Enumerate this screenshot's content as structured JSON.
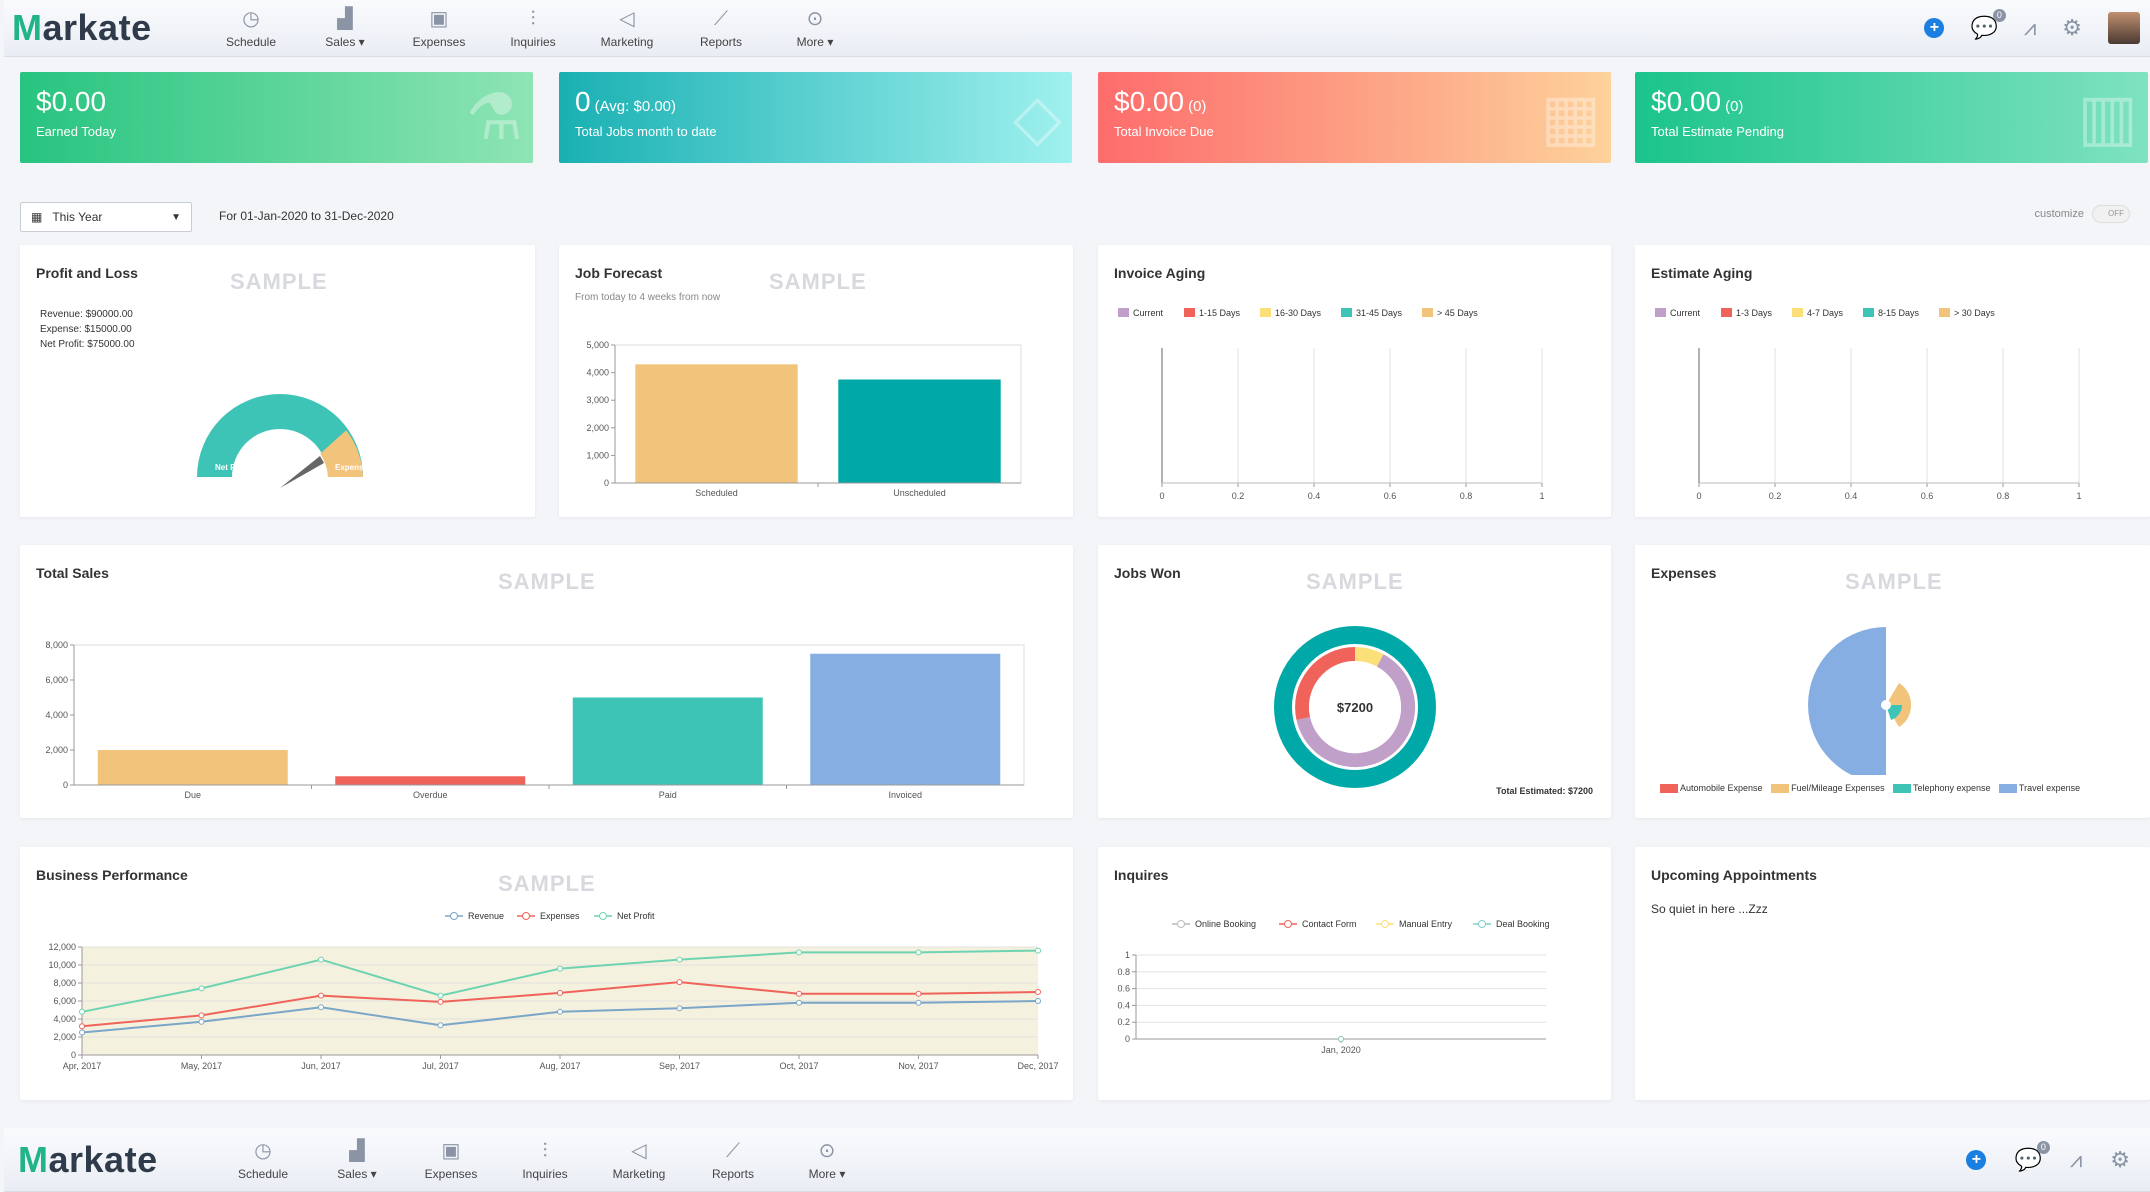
{
  "app": {
    "logo": "Markate",
    "nav": [
      "Schedule",
      "Sales",
      "Expenses",
      "Inquiries",
      "Marketing",
      "Reports",
      "More"
    ],
    "nav_icons": [
      "clock-icon",
      "sales-icon",
      "wallet-icon",
      "inquiries-icon",
      "megaphone-icon",
      "chart-icon",
      "more-icon"
    ],
    "notification_count": "0"
  },
  "stats": [
    {
      "value": "$0.00",
      "extra": "",
      "label": "Earned Today"
    },
    {
      "value": "0",
      "extra": "(Avg: $0.00)",
      "label": "Total Jobs month to date"
    },
    {
      "value": "$0.00",
      "extra": "(0)",
      "label": "Total Invoice Due"
    },
    {
      "value": "$0.00",
      "extra": "(0)",
      "label": "Total Estimate Pending"
    }
  ],
  "filter": {
    "selected": "This Year",
    "range": "For 01-Jan-2020 to 31-Dec-2020",
    "customize": "customize",
    "toggle": "OFF"
  },
  "sample": "SAMPLE",
  "profit_loss": {
    "title": "Profit and Loss",
    "lines": [
      "Revenue: $90000.00",
      "Expense: $15000.00",
      "Net Profit: $75000.00"
    ],
    "gauge_labels": [
      "Net Profit",
      "Expenses"
    ]
  },
  "job_forecast": {
    "title": "Job Forecast",
    "subtitle": "From today to 4 weeks from now"
  },
  "invoice_aging": {
    "title": "Invoice Aging",
    "legend": [
      "Current",
      "1-15 Days",
      "16-30 Days",
      "31-45 Days",
      "> 45 Days"
    ]
  },
  "estimate_aging": {
    "title": "Estimate Aging",
    "legend": [
      "Current",
      "1-3 Days",
      "4-7 Days",
      "8-15 Days",
      "> 30 Days"
    ]
  },
  "total_sales": {
    "title": "Total Sales"
  },
  "jobs_won": {
    "title": "Jobs Won",
    "center": "$7200",
    "footer": "Total Estimated: $7200"
  },
  "expenses": {
    "title": "Expenses",
    "legend": [
      "Automobile Expense",
      "Fuel/Mileage Expenses",
      "Telephony expense",
      "Travel expense"
    ]
  },
  "business": {
    "title": "Business Performance"
  },
  "inquires": {
    "title": "Inquires"
  },
  "appointments": {
    "title": "Upcoming Appointments",
    "empty": "So quiet in here ...Zzz"
  },
  "colors": {
    "teal": "#00a9a8",
    "orange": "#f2c37a",
    "red": "#f0635a",
    "green": "#3ec4b6",
    "blue": "#86aee2",
    "purple": "#c0a0c8",
    "yellow": "#fbe07a"
  },
  "chart_data": [
    {
      "type": "bar",
      "title": "Job Forecast",
      "categories": [
        "Scheduled",
        "Unscheduled"
      ],
      "values": [
        4300,
        3750
      ],
      "ylim": [
        0,
        5000
      ],
      "yticks": [
        "0",
        "1,000",
        "2,000",
        "3,000",
        "4,000",
        "5,000"
      ]
    },
    {
      "type": "bar",
      "title": "Invoice Aging",
      "categories": [],
      "values": [],
      "xlim": [
        0,
        1
      ],
      "xticks": [
        "0",
        "0.2",
        "0.4",
        "0.6",
        "0.8",
        "1"
      ]
    },
    {
      "type": "bar",
      "title": "Estimate Aging",
      "categories": [],
      "values": [],
      "xlim": [
        0,
        1
      ],
      "xticks": [
        "0",
        "0.2",
        "0.4",
        "0.6",
        "0.8",
        "1"
      ]
    },
    {
      "type": "bar",
      "title": "Total Sales",
      "categories": [
        "Due",
        "Overdue",
        "Paid",
        "Invoiced"
      ],
      "values": [
        2000,
        500,
        5000,
        7500
      ],
      "ylim": [
        0,
        8000
      ],
      "yticks": [
        "0",
        "2,000",
        "4,000",
        "6,000",
        "8,000"
      ]
    },
    {
      "type": "pie",
      "title": "Jobs Won",
      "center_label": "$7200"
    },
    {
      "type": "pie",
      "title": "Expenses",
      "labels": [
        "Automobile Expense",
        "Fuel/Mileage Expenses",
        "Telephony expense",
        "Travel expense"
      ]
    },
    {
      "type": "line",
      "title": "Business Performance",
      "x": [
        "Apr, 2017",
        "May, 2017",
        "Jun, 2017",
        "Jul, 2017",
        "Aug, 2017",
        "Sep, 2017",
        "Oct, 2017",
        "Nov, 2017",
        "Dec, 2017"
      ],
      "series": [
        {
          "name": "Revenue",
          "values": [
            2500,
            3700,
            5300,
            3300,
            4800,
            5200,
            5800,
            5800,
            6000
          ]
        },
        {
          "name": "Expenses",
          "values": [
            3200,
            4400,
            6600,
            5900,
            6900,
            8100,
            6800,
            6800,
            7000
          ]
        },
        {
          "name": "Net Profit",
          "values": [
            4800,
            7400,
            10600,
            6600,
            9600,
            10600,
            11400,
            11400,
            11600
          ]
        }
      ],
      "ylim": [
        0,
        12000
      ],
      "yticks": [
        "0",
        "2,000",
        "4,000",
        "6,000",
        "8,000",
        "10,000",
        "12,000"
      ]
    },
    {
      "type": "line",
      "title": "Inquires",
      "x": [
        "Jan, 2020"
      ],
      "series": [
        {
          "name": "Online Booking",
          "values": [
            0
          ]
        },
        {
          "name": "Contact Form",
          "values": [
            0
          ]
        },
        {
          "name": "Manual Entry",
          "values": [
            0
          ]
        },
        {
          "name": "Deal Booking",
          "values": [
            0
          ]
        }
      ],
      "ylim": [
        0,
        1
      ],
      "yticks": [
        "0",
        "0.2",
        "0.4",
        "0.6",
        "0.8",
        "1"
      ]
    }
  ]
}
